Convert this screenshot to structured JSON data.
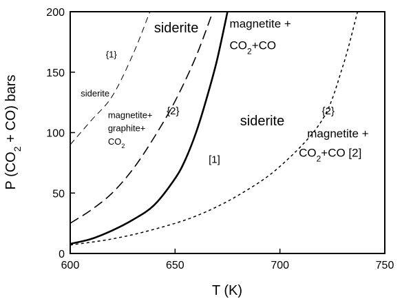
{
  "chart_data": {
    "type": "line",
    "xlabel": "T (K)",
    "ylabel_parts": [
      "P (CO",
      "2",
      " + CO)  bars"
    ],
    "xlim": [
      600,
      750
    ],
    "ylim": [
      0,
      200
    ],
    "xticks": [
      600,
      650,
      700,
      750
    ],
    "yticks": [
      0,
      50,
      100,
      150,
      200
    ],
    "grid": false,
    "series": [
      {
        "style": "solid",
        "points": [
          [
            600,
            8
          ],
          [
            610,
            12
          ],
          [
            620,
            19
          ],
          [
            630,
            28
          ],
          [
            640,
            40
          ],
          [
            650,
            62
          ],
          [
            655,
            78
          ],
          [
            660,
            100
          ],
          [
            665,
            128
          ],
          [
            670,
            160
          ],
          [
            675,
            200
          ]
        ]
      },
      {
        "style": "long-dash",
        "points": [
          [
            600,
            25
          ],
          [
            610,
            36
          ],
          [
            620,
            50
          ],
          [
            630,
            70
          ],
          [
            640,
            96
          ],
          [
            650,
            126
          ],
          [
            660,
            163
          ],
          [
            668,
            200
          ]
        ]
      },
      {
        "style": "short-dash",
        "points": [
          [
            600,
            7
          ],
          [
            620,
            12
          ],
          [
            640,
            20
          ],
          [
            660,
            31
          ],
          [
            680,
            48
          ],
          [
            700,
            72
          ],
          [
            720,
            110
          ],
          [
            730,
            155
          ],
          [
            737,
            200
          ]
        ]
      },
      {
        "style": "thin-dash",
        "points": [
          [
            600,
            90
          ],
          [
            610,
            110
          ],
          [
            620,
            130
          ],
          [
            630,
            165
          ],
          [
            638,
            200
          ]
        ]
      }
    ],
    "annotations": [
      {
        "id": "siderite-top",
        "parts": [
          {
            "t": "siderite"
          }
        ],
        "x": 640,
        "y": 183,
        "size": 20,
        "bold": false
      },
      {
        "id": "magnetite-co2co-top",
        "parts": [
          {
            "t": "magnetite +"
          }
        ],
        "x": 676,
        "y": 187,
        "size": 17
      },
      {
        "id": "co2co-top",
        "parts": [
          {
            "t": "CO"
          },
          {
            "t": "2",
            "sub": true
          },
          {
            "t": "+CO"
          }
        ],
        "x": 676,
        "y": 169,
        "size": 17
      },
      {
        "id": "label-brace-1",
        "parts": [
          {
            "t": "{1}"
          }
        ],
        "x": 617,
        "y": 162,
        "size": 13
      },
      {
        "id": "siderite-small",
        "parts": [
          {
            "t": "siderite"
          }
        ],
        "x": 605,
        "y": 130,
        "size": 13
      },
      {
        "id": "magnetite-graphite-1",
        "parts": [
          {
            "t": "magnetite+"
          }
        ],
        "x": 618,
        "y": 112,
        "size": 13
      },
      {
        "id": "magnetite-graphite-2",
        "parts": [
          {
            "t": "graphite+"
          }
        ],
        "x": 618,
        "y": 101,
        "size": 13
      },
      {
        "id": "magnetite-graphite-3",
        "parts": [
          {
            "t": "CO"
          },
          {
            "t": "2",
            "sub": true
          }
        ],
        "x": 618,
        "y": 90,
        "size": 13
      },
      {
        "id": "label-brace-2a",
        "parts": [
          {
            "t": "{2}"
          }
        ],
        "x": 646,
        "y": 115,
        "size": 15
      },
      {
        "id": "label-bracket-1",
        "parts": [
          {
            "t": "[1]"
          }
        ],
        "x": 666,
        "y": 75,
        "size": 15
      },
      {
        "id": "siderite-mid",
        "parts": [
          {
            "t": "siderite"
          }
        ],
        "x": 681,
        "y": 106,
        "size": 20
      },
      {
        "id": "label-brace-2b",
        "parts": [
          {
            "t": "{2}"
          }
        ],
        "x": 720,
        "y": 115,
        "size": 15
      },
      {
        "id": "magnetite-co2co-right",
        "parts": [
          {
            "t": "magnetite +"
          }
        ],
        "x": 713,
        "y": 96,
        "size": 17
      },
      {
        "id": "co2co-right",
        "parts": [
          {
            "t": "CO"
          },
          {
            "t": "2",
            "sub": true
          },
          {
            "t": "+CO [2]"
          }
        ],
        "x": 709,
        "y": 80,
        "size": 17
      }
    ]
  }
}
